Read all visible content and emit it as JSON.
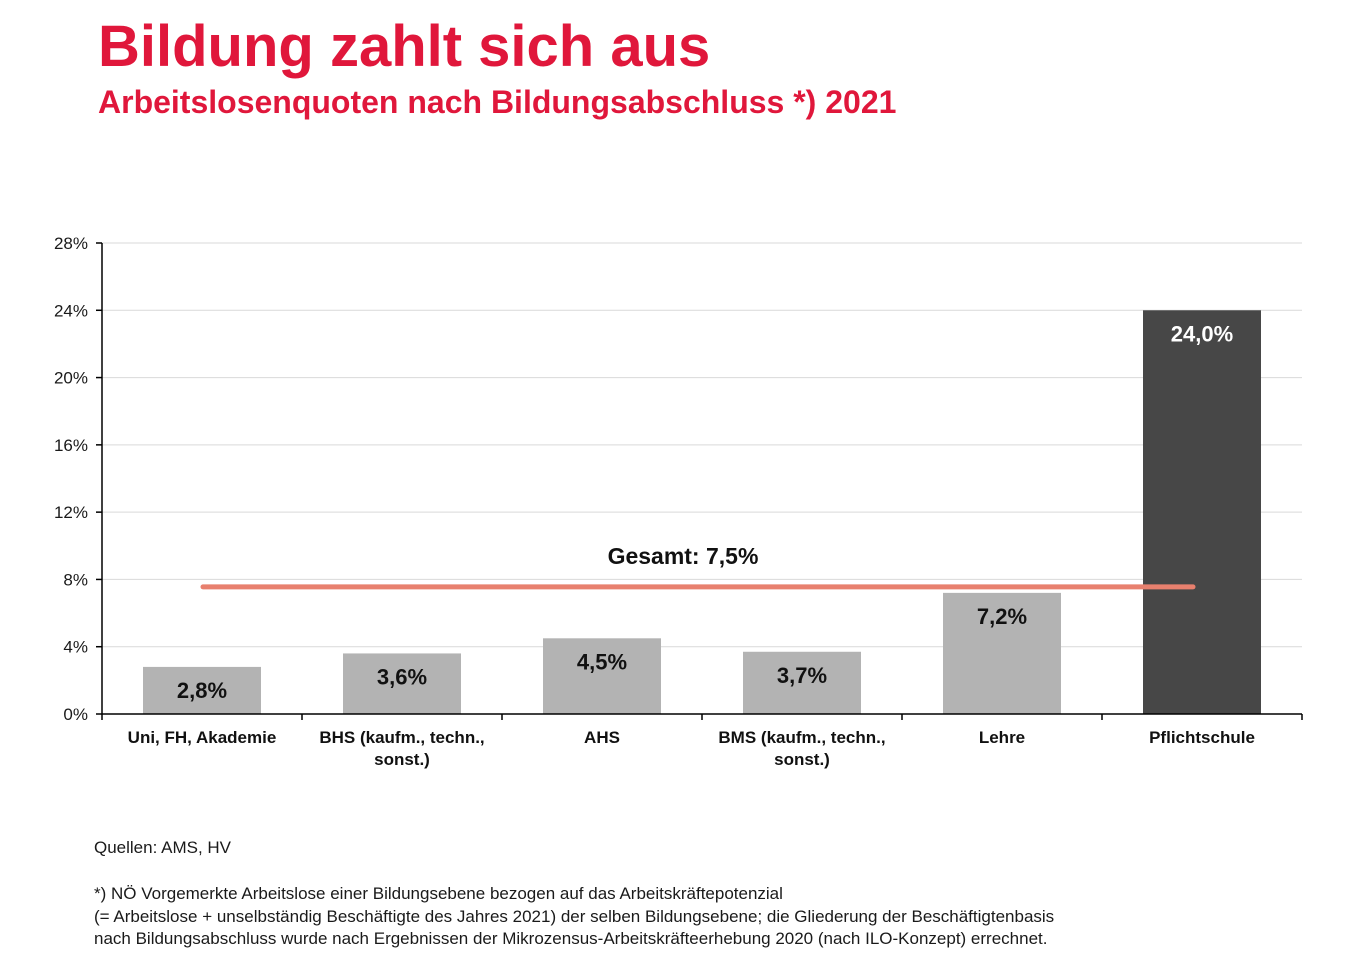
{
  "header": {
    "title": "Bildung zahlt sich aus",
    "subtitle": "Arbeitslosenquoten nach Bildungsabschluss *) 2021"
  },
  "chart_data": {
    "type": "bar",
    "categories": [
      [
        "Uni, FH, Akademie"
      ],
      [
        "BHS (kaufm., techn.,",
        "sonst.)"
      ],
      [
        "AHS"
      ],
      [
        "BMS (kaufm., techn.,",
        "sonst.)"
      ],
      [
        "Lehre"
      ],
      [
        "Pflichtschule"
      ]
    ],
    "values": [
      2.8,
      3.6,
      4.5,
      3.7,
      7.2,
      24.0
    ],
    "value_labels": [
      "2,8%",
      "3,6%",
      "4,5%",
      "3,7%",
      "7,2%",
      "24,0%"
    ],
    "ylim": [
      0,
      28
    ],
    "yticks": [
      0,
      4,
      8,
      12,
      16,
      20,
      24,
      28
    ],
    "ytick_labels": [
      "0%",
      "4%",
      "8%",
      "12%",
      "16%",
      "20%",
      "24%",
      "28%"
    ],
    "grid": true,
    "reference_line": {
      "value": 7.5,
      "label": "Gesamt: 7,5%",
      "color": "#e8806e"
    },
    "colors": {
      "bar": "#b3b3b3",
      "highlight_bar": "#474747",
      "grid": "#d9d9d9",
      "axis": "#000000"
    },
    "highlight_index": 5
  },
  "footer": {
    "sources": "Quellen: AMS, HV",
    "footnote_lines": [
      "*) NÖ Vorgemerkte Arbeitslose einer Bildungsebene bezogen auf das Arbeitskräftepotenzial",
      "(= Arbeitslose + unselbständig Beschäftigte des Jahres 2021) der selben Bildungsebene; die Gliederung der Beschäftigtenbasis",
      "nach Bildungsabschluss wurde nach Ergebnissen der Mikrozensus-Arbeitskräfteerhebung 2020 (nach ILO-Konzept) errechnet."
    ]
  }
}
